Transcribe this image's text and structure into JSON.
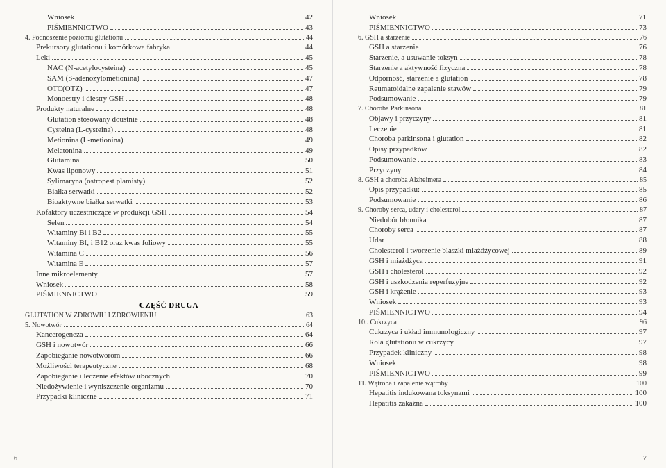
{
  "section_heading": "CZĘŚĆ DRUGA",
  "left_footer": "6",
  "right_footer": "7",
  "left": [
    {
      "label": "Wniosek",
      "page": "42",
      "indent": 2
    },
    {
      "label": "PIŚMIENNICTWO",
      "page": "43",
      "indent": 2
    },
    {
      "label": "4.    Podnoszenie poziomu glutationu",
      "page": "44",
      "indent": 0,
      "small": true
    },
    {
      "label": "Prekursory glutationu i komórkowa fabryka",
      "page": "44",
      "indent": 1
    },
    {
      "label": "Leki",
      "page": "45",
      "indent": 1
    },
    {
      "label": "NAC (N-acetylocysteina)",
      "page": "45",
      "indent": 2
    },
    {
      "label": "SAM (S-adenozylometionina)",
      "page": "47",
      "indent": 2
    },
    {
      "label": "OTC(OTZ)",
      "page": "47",
      "indent": 2
    },
    {
      "label": "Monoestry i diestry GSH",
      "page": "48",
      "indent": 2
    },
    {
      "label": "Produkty naturalne",
      "page": "48",
      "indent": 1
    },
    {
      "label": "Glutation stosowany doustnie",
      "page": "48",
      "indent": 2
    },
    {
      "label": "Cysteina (L-cysteina)",
      "page": "48",
      "indent": 2
    },
    {
      "label": "Metionina (L-metionina)",
      "page": "49",
      "indent": 2
    },
    {
      "label": "Melatonina",
      "page": "49",
      "indent": 2
    },
    {
      "label": "Glutamina",
      "page": "50",
      "indent": 2
    },
    {
      "label": "Kwas liponowy",
      "page": "51",
      "indent": 2
    },
    {
      "label": "Sylimaryna (ostropest plamisty)",
      "page": "52",
      "indent": 2
    },
    {
      "label": "Białka serwatki",
      "page": "52",
      "indent": 2
    },
    {
      "label": "Bioaktywne białka serwatki",
      "page": "53",
      "indent": 2
    },
    {
      "label": "Kofaktory uczestniczące w produkcji GSH",
      "page": "54",
      "indent": 1
    },
    {
      "label": "Selen",
      "page": "54",
      "indent": 2
    },
    {
      "label": "Witaminy Bi i B2",
      "page": "55",
      "indent": 2
    },
    {
      "label": "Witaminy Bf, i B12 oraz kwas foliowy",
      "page": "55",
      "indent": 2
    },
    {
      "label": "Witamina C",
      "page": "56",
      "indent": 2
    },
    {
      "label": "Witamina E",
      "page": "57",
      "indent": 2
    },
    {
      "label": "Inne mikroelementy",
      "page": "57",
      "indent": 1
    },
    {
      "label": "Wniosek",
      "page": "58",
      "indent": 1
    },
    {
      "label": "PIŚMIENNICTWO",
      "page": "59",
      "indent": 1
    },
    {
      "type": "heading"
    },
    {
      "label": "GLUTATION W ZDROWIU    I ZDROWIENIU",
      "page": "63",
      "indent": 0,
      "small": true
    },
    {
      "label": "5.    Nowotwór",
      "page": "64",
      "indent": 0,
      "small": true
    },
    {
      "label": "Kancerogeneza",
      "page": "64",
      "indent": 1
    },
    {
      "label": "GSH i nowotwór",
      "page": "66",
      "indent": 1
    },
    {
      "label": "Zapobieganie nowotworom",
      "page": "66",
      "indent": 1
    },
    {
      "label": "Możliwości terapeutyczne",
      "page": "68",
      "indent": 1
    },
    {
      "label": "Zapobieganie i leczenie efektów ubocznych",
      "page": "70",
      "indent": 1
    },
    {
      "label": "Niedożywienie i wyniszczenie organizmu",
      "page": "70",
      "indent": 1
    },
    {
      "label": "Przypadki kliniczne",
      "page": "71",
      "indent": 1
    }
  ],
  "right": [
    {
      "label": "Wniosek",
      "page": "71",
      "indent": 1
    },
    {
      "label": "PIŚMIENNICTWO",
      "page": "73",
      "indent": 1
    },
    {
      "label": "6.    GSH a starzenie",
      "page": "76",
      "indent": 0,
      "small": true
    },
    {
      "label": "GSH a starzenie",
      "page": "76",
      "indent": 1
    },
    {
      "label": "Starzenie, a usuwanie toksyn",
      "page": "78",
      "indent": 1
    },
    {
      "label": "Starzenie a aktywność fizyczna",
      "page": "78",
      "indent": 1
    },
    {
      "label": "Odporność, starzenie a glutation",
      "page": "78",
      "indent": 1
    },
    {
      "label": "Reumatoidalne zapalenie stawów",
      "page": "79",
      "indent": 1
    },
    {
      "label": "Podsumowanie",
      "page": "79",
      "indent": 1
    },
    {
      "label": "7.    Choroba Parkinsona",
      "page": "81",
      "indent": 0,
      "small": true
    },
    {
      "label": "Objawy i przyczyny",
      "page": "81",
      "indent": 1
    },
    {
      "label": "Leczenie",
      "page": "81",
      "indent": 1
    },
    {
      "label": "Choroba parkinsona i glutation",
      "page": "82",
      "indent": 1
    },
    {
      "label": "Opisy przypadków",
      "page": "82",
      "indent": 1
    },
    {
      "label": "Podsumowanie",
      "page": "83",
      "indent": 1
    },
    {
      "label": "Przyczyny",
      "page": "84",
      "indent": 1
    },
    {
      "label": "8. GSH a choroba Alzheimera",
      "page": "85",
      "indent": 0,
      "small": true
    },
    {
      "label": "Opis przypadku:",
      "page": "85",
      "indent": 1
    },
    {
      "label": "Podsumowanie",
      "page": "86",
      "indent": 1
    },
    {
      "label": "9.    Choroby serca, udary i cholesterol",
      "page": "87",
      "indent": 0,
      "small": true
    },
    {
      "label": "Niedobór błonnika",
      "page": "87",
      "indent": 1
    },
    {
      "label": "Choroby serca",
      "page": "87",
      "indent": 1
    },
    {
      "label": "Udar",
      "page": "88",
      "indent": 1
    },
    {
      "label": "Cholesterol i tworzenie blaszki miażdżycowej",
      "page": "89",
      "indent": 1
    },
    {
      "label": "GSH i miażdżyca",
      "page": "91",
      "indent": 1
    },
    {
      "label": "GSH i cholesterol",
      "page": "92",
      "indent": 1
    },
    {
      "label": "GSH i uszkodzenia reperfuzyjne",
      "page": "92",
      "indent": 1
    },
    {
      "label": "GSH i krążenie",
      "page": "93",
      "indent": 1
    },
    {
      "label": "Wniosek",
      "page": "93",
      "indent": 1
    },
    {
      "label": "PIŚMIENNICTWO",
      "page": "94",
      "indent": 1
    },
    {
      "label": "10..   Cukrzyca",
      "page": "96",
      "indent": 0,
      "small": true
    },
    {
      "label": "Cukrzyca i układ immunologiczny",
      "page": "97",
      "indent": 1
    },
    {
      "label": "Rola glutationu w cukrzycy",
      "page": "97",
      "indent": 1
    },
    {
      "label": "Przypadek kliniczny",
      "page": "98",
      "indent": 1
    },
    {
      "label": "Wniosek",
      "page": "98",
      "indent": 1
    },
    {
      "label": "PIŚMIENNICTWO",
      "page": "99",
      "indent": 1
    },
    {
      "label": "11.   Wątroba i zapalenie wątroby",
      "page": "100",
      "indent": 0,
      "small": true
    },
    {
      "label": "Hepatitis indukowana toksynami",
      "page": "100",
      "indent": 1
    },
    {
      "label": "Hepatitis zakaźna",
      "page": "100",
      "indent": 1
    }
  ]
}
